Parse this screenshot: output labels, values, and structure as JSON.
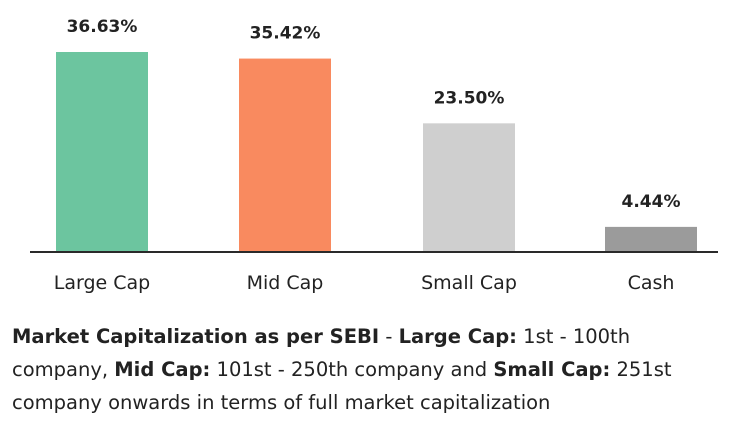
{
  "chart_data": {
    "type": "bar",
    "categories": [
      "Large Cap",
      "Mid Cap",
      "Small Cap",
      "Cash"
    ],
    "values": [
      36.63,
      35.42,
      23.5,
      4.44
    ],
    "value_labels": [
      "36.63%",
      "35.42%",
      "23.50%",
      "4.44%"
    ],
    "colors": [
      "#6cc59f",
      "#f98a5f",
      "#cfcfcf",
      "#9b9b9b"
    ],
    "ylim": [
      0,
      36.63
    ],
    "grid": false,
    "legend": "none",
    "title": "",
    "xlabel": "",
    "ylabel": ""
  },
  "footnote": {
    "bold_1": "Market Capitalization as per SEBI",
    "text_1": " - ",
    "bold_2": "Large Cap:",
    "text_2": " 1st - 100th company, ",
    "bold_3": "Mid Cap:",
    "text_3": " 101st - 250th company and ",
    "bold_4": "Small Cap:",
    "text_4": " 251st company onwards in terms of full market capitalization"
  }
}
